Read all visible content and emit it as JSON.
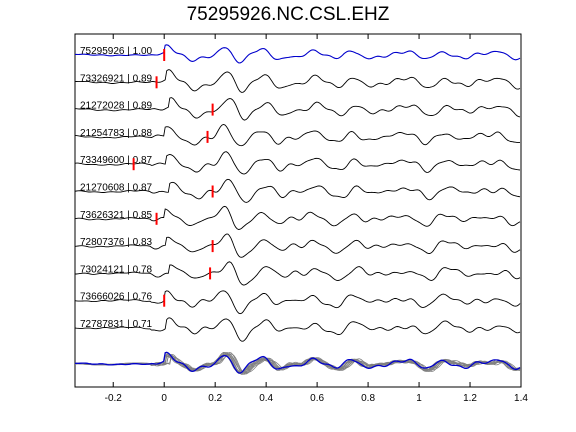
{
  "chart_data": {
    "type": "line",
    "title": "75295926.NC.CSL.EHZ",
    "xlim": [
      -0.35,
      1.4
    ],
    "x_ticks": [
      "-0.2",
      "0",
      "0.2",
      "0.4",
      "0.6",
      "0.8",
      "1",
      "1.2",
      "1.4"
    ],
    "x_tick_values": [
      -0.2,
      0,
      0.2,
      0.4,
      0.6,
      0.8,
      1.0,
      1.2,
      1.4
    ],
    "grid": false,
    "reference_color": "#0000cc",
    "trace_color": "#000000",
    "pick_color": "#ff0000",
    "stack_trace_color": "#808080",
    "traces": [
      {
        "label": "75295926 | 1.00",
        "pick": 0.0
      },
      {
        "label": "73326921 | 0.89",
        "pick": -0.03
      },
      {
        "label": "21272028 | 0.89",
        "pick": 0.19
      },
      {
        "label": "21254783 | 0.88",
        "pick": 0.17
      },
      {
        "label": "73349600 | 0.87",
        "pick": -0.12
      },
      {
        "label": "21270608 | 0.87",
        "pick": 0.19
      },
      {
        "label": "73626321 | 0.85",
        "pick": -0.03
      },
      {
        "label": "72807376 | 0.83",
        "pick": 0.19
      },
      {
        "label": "73024121 | 0.78",
        "pick": 0.18
      },
      {
        "label": "73666026 | 0.76",
        "pick": 0.0
      },
      {
        "label": "72787831 | 0.71",
        "pick": null
      }
    ]
  }
}
